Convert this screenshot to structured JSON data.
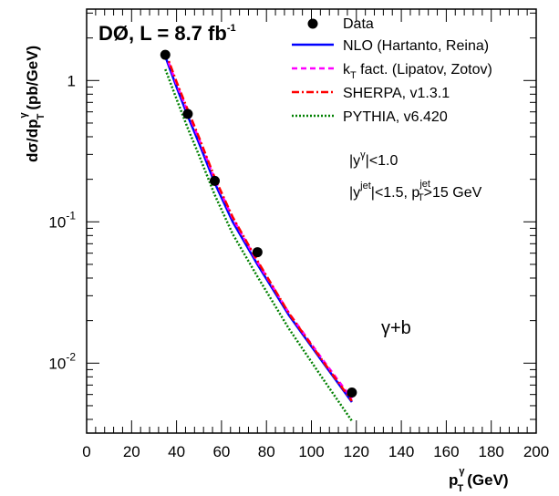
{
  "chart_data": {
    "type": "line",
    "title": "",
    "experiment_label": {
      "main": "DØ, L = 8.7 fb",
      "exponent": "-1"
    },
    "process_label": "γ+b",
    "xlabel": {
      "p": "p",
      "sup": "γ",
      "sub": "T",
      "unit": "(GeV)"
    },
    "ylabel": {
      "pre": "dσ/dp",
      "sup": "γ",
      "sub": "T",
      "unit": "(pb/GeV)"
    },
    "xlim": [
      0,
      200
    ],
    "ylim": [
      0.0032,
      3.2
    ],
    "yscale": "log",
    "x_ticks": [
      "0",
      "20",
      "40",
      "60",
      "80",
      "100",
      "120",
      "140",
      "160",
      "180",
      "200"
    ],
    "y_ticks": [
      {
        "value": 1,
        "base": "1",
        "exp": ""
      },
      {
        "value": 0.1,
        "base": "10",
        "exp": "-1"
      },
      {
        "value": 0.01,
        "base": "10",
        "exp": "-2"
      }
    ],
    "cuts": [
      {
        "parts": [
          "|y",
          "γ",
          "|<1.0"
        ]
      },
      {
        "parts": [
          "|y",
          "jet",
          "|<1.5, p",
          "jet",
          "T",
          ">15 GeV"
        ]
      }
    ],
    "legend_position": "top-right",
    "series": [
      {
        "name": "Data",
        "kind": "points",
        "color": "#000000",
        "x": [
          35,
          45,
          57,
          76,
          118
        ],
        "y": [
          1.52,
          0.58,
          0.195,
          0.061,
          0.0062
        ]
      },
      {
        "name": "NLO (Hartanto, Reina)",
        "kind": "line",
        "color": "#0000ff",
        "dash": "",
        "x": [
          35,
          40,
          45,
          50,
          57,
          65,
          76,
          90,
          105,
          118
        ],
        "y": [
          1.48,
          0.9,
          0.56,
          0.36,
          0.188,
          0.1,
          0.05,
          0.0218,
          0.0102,
          0.0053
        ]
      },
      {
        "name": "k_T fact. (Lipatov, Zotov)",
        "kind": "line",
        "color": "#ff00ff",
        "dash": "6,4",
        "x": [
          35,
          40,
          45,
          50,
          57,
          65,
          76,
          90,
          105,
          118
        ],
        "y": [
          1.55,
          0.95,
          0.6,
          0.385,
          0.2,
          0.106,
          0.052,
          0.0226,
          0.0106,
          0.0056
        ]
      },
      {
        "name": "SHERPA, v1.3.1",
        "kind": "line",
        "color": "#ff0000",
        "dash": "8,3,2,3",
        "x": [
          35,
          40,
          45,
          50,
          57,
          65,
          76,
          90,
          105,
          118
        ],
        "y": [
          1.6,
          0.98,
          0.62,
          0.395,
          0.205,
          0.108,
          0.053,
          0.0225,
          0.0104,
          0.0054
        ]
      },
      {
        "name": "PYTHIA, v6.420",
        "kind": "line",
        "color": "#008000",
        "dash": "2,2",
        "x": [
          35,
          40,
          45,
          50,
          57,
          65,
          76,
          90,
          105,
          118
        ],
        "y": [
          1.2,
          0.74,
          0.46,
          0.295,
          0.155,
          0.082,
          0.041,
          0.0175,
          0.0078,
          0.0039
        ]
      }
    ]
  }
}
